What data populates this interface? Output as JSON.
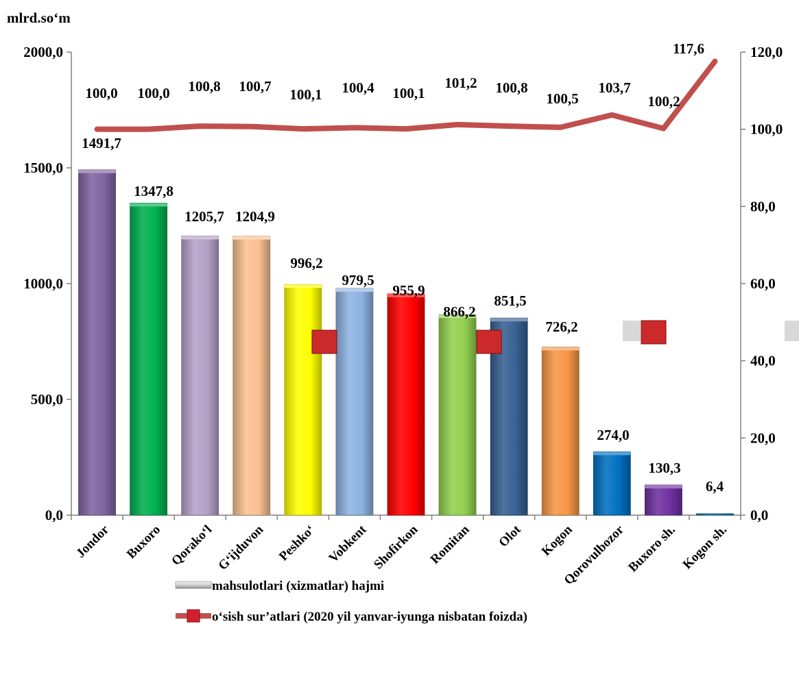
{
  "chart_data": {
    "type": "bar",
    "unit_label": "mlrd.so‘m",
    "categories": [
      "Jondor",
      "Buxoro",
      "Qorako‘l",
      "G‘ijduvon",
      "Peshko‘",
      "Vobkent",
      "Shofirkon",
      "Romitan",
      "Olot",
      "Kogon",
      "Qorovulbozor",
      "Buxoro sh.",
      "Kogon sh."
    ],
    "series": [
      {
        "name": "mahsulotlari (xizmatlar) hajmi",
        "axis": "left",
        "type": "bar",
        "values": [
          1491.7,
          1347.8,
          1205.7,
          1204.9,
          996.2,
          979.5,
          955.9,
          866.2,
          851.5,
          726.2,
          274.0,
          130.3,
          6.4
        ],
        "labels": [
          "1491,7",
          "1347,8",
          "1205,7",
          "1204,9",
          "996,2",
          "979,5",
          "955,9",
          "866,2",
          "851,5",
          "726,2",
          "274,0",
          "130,3",
          "6,4"
        ],
        "colors": [
          "#8064a2",
          "#00b050",
          "#b3a2c7",
          "#fac090",
          "#ffff00",
          "#8db3e2",
          "#ff0000",
          "#92d050",
          "#376092",
          "#f79646",
          "#0070c0",
          "#7030a0",
          "#1f77b4"
        ]
      },
      {
        "name": "o‘sish sur’atlari (2020 yil yanvar-iyunga  nisbatan foizda)",
        "axis": "right",
        "type": "line",
        "values": [
          100.0,
          100.0,
          100.8,
          100.7,
          100.1,
          100.4,
          100.1,
          101.2,
          100.8,
          100.5,
          103.7,
          100.2,
          117.6
        ],
        "labels": [
          "100,0",
          "100,0",
          "100,8",
          "100,7",
          "100,1",
          "100,4",
          "100,1",
          "101,2",
          "100,8",
          "100,5",
          "103,7",
          "100,2",
          "117,6"
        ],
        "color": "#c0504d"
      }
    ],
    "y_left": {
      "min": 0,
      "max": 2000,
      "ticks": [
        0,
        500,
        1000,
        1500,
        2000
      ],
      "tick_labels": [
        "0,0",
        "500,0",
        "1000,0",
        "1500,0",
        "2000,0"
      ]
    },
    "y_right": {
      "min": 0,
      "max": 120,
      "ticks": [
        0,
        20,
        40,
        60,
        80,
        100,
        120
      ],
      "tick_labels": [
        "0,0",
        "20,0",
        "40,0",
        "60,0",
        "80,0",
        "100,0",
        "120,0"
      ]
    },
    "grid": false,
    "legend_position": "bottom"
  }
}
